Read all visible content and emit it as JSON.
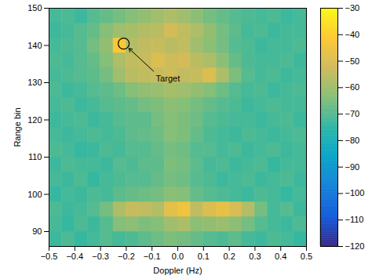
{
  "chart_data": {
    "type": "heatmap",
    "x_label": "Doppler (Hz)",
    "y_label": "Range bin",
    "xlim": [
      -0.5,
      0.5
    ],
    "xticks": [
      -0.5,
      -0.4,
      -0.3,
      -0.2,
      -0.1,
      0,
      0.1,
      0.2,
      0.3,
      0.4,
      0.5
    ],
    "ylim": [
      86,
      150
    ],
    "yticks": [
      90,
      100,
      110,
      120,
      130,
      140,
      150
    ],
    "x_edges": [
      -0.5,
      -0.45,
      -0.4,
      -0.35,
      -0.3,
      -0.25,
      -0.2,
      -0.15,
      -0.1,
      -0.05,
      0,
      0.05,
      0.1,
      0.15,
      0.2,
      0.25,
      0.3,
      0.35,
      0.4,
      0.45,
      0.5
    ],
    "y_edges": [
      86,
      90,
      94,
      98,
      102,
      106,
      110,
      114,
      118,
      122,
      126,
      130,
      134,
      138,
      142,
      146,
      150
    ],
    "values": [
      [
        -73,
        -71,
        -74,
        -72,
        -70,
        -72,
        -71,
        -69,
        -67,
        -65,
        -66,
        -68,
        -70,
        -71,
        -69,
        -72,
        -73,
        -71,
        -72,
        -74
      ],
      [
        -72,
        -74,
        -71,
        -73,
        -70,
        -64,
        -63,
        -65,
        -64,
        -60,
        -58,
        -63,
        -62,
        -61,
        -63,
        -66,
        -70,
        -72,
        -73,
        -71
      ],
      [
        -71,
        -73,
        -72,
        -70,
        -66,
        -58,
        -54,
        -55,
        -57,
        -48,
        -45,
        -55,
        -50,
        -47,
        -51,
        -57,
        -66,
        -72,
        -70,
        -73
      ],
      [
        -74,
        -72,
        -73,
        -71,
        -72,
        -69,
        -68,
        -67,
        -66,
        -63,
        -64,
        -68,
        -70,
        -71,
        -72,
        -73,
        -71,
        -72,
        -74,
        -72
      ],
      [
        -72,
        -73,
        -71,
        -74,
        -72,
        -71,
        -70,
        -70,
        -68,
        -66,
        -67,
        -70,
        -71,
        -73,
        -72,
        -71,
        -73,
        -72,
        -71,
        -73
      ],
      [
        -73,
        -71,
        -72,
        -72,
        -73,
        -70,
        -71,
        -69,
        -69,
        -65,
        -66,
        -69,
        -72,
        -71,
        -73,
        -72,
        -71,
        -74,
        -72,
        -72
      ],
      [
        -71,
        -72,
        -74,
        -73,
        -71,
        -72,
        -70,
        -70,
        -68,
        -66,
        -67,
        -70,
        -70,
        -72,
        -71,
        -73,
        -72,
        -71,
        -73,
        -72
      ],
      [
        -72,
        -73,
        -72,
        -71,
        -72,
        -71,
        -69,
        -68,
        -67,
        -64,
        -65,
        -68,
        -71,
        -72,
        -73,
        -71,
        -72,
        -73,
        -72,
        -71
      ],
      [
        -73,
        -72,
        -71,
        -73,
        -72,
        -70,
        -69,
        -69,
        -66,
        -64,
        -65,
        -67,
        -70,
        -71,
        -72,
        -72,
        -73,
        -72,
        -71,
        -73
      ],
      [
        -72,
        -71,
        -73,
        -72,
        -70,
        -69,
        -68,
        -66,
        -65,
        -63,
        -64,
        -66,
        -68,
        -70,
        -71,
        -73,
        -72,
        -71,
        -72,
        -72
      ],
      [
        -71,
        -73,
        -72,
        -70,
        -69,
        -67,
        -64,
        -62,
        -61,
        -59,
        -60,
        -62,
        -64,
        -67,
        -70,
        -72,
        -71,
        -73,
        -72,
        -71
      ],
      [
        -72,
        -71,
        -70,
        -69,
        -66,
        -60,
        -56,
        -55,
        -54,
        -53,
        -55,
        -54,
        -50,
        -58,
        -65,
        -70,
        -72,
        -71,
        -73,
        -72
      ],
      [
        -71,
        -72,
        -70,
        -68,
        -64,
        -58,
        -55,
        -54,
        -50,
        -53,
        -52,
        -56,
        -58,
        -63,
        -68,
        -71,
        -72,
        -72,
        -71,
        -73
      ],
      [
        -72,
        -71,
        -70,
        -66,
        -62,
        -42,
        -57,
        -55,
        -54,
        -56,
        -55,
        -60,
        -63,
        -66,
        -70,
        -71,
        -73,
        -72,
        -72,
        -71
      ],
      [
        -73,
        -72,
        -70,
        -68,
        -64,
        -60,
        -59,
        -57,
        -56,
        -52,
        -55,
        -58,
        -62,
        -66,
        -69,
        -72,
        -71,
        -73,
        -72,
        -72
      ],
      [
        -72,
        -71,
        -73,
        -70,
        -68,
        -66,
        -64,
        -62,
        -60,
        -58,
        -60,
        -63,
        -66,
        -68,
        -70,
        -71,
        -72,
        -71,
        -73,
        -72
      ]
    ],
    "colorbar": {
      "lim": [
        -120,
        -30
      ],
      "ticks": [
        -120,
        -110,
        -100,
        -90,
        -80,
        -70,
        -60,
        -50,
        -40,
        -30
      ]
    },
    "annotations": [
      {
        "text": "Target",
        "x": -0.085,
        "y": 132.5,
        "target_x": -0.21,
        "target_y": 140.5
      }
    ]
  }
}
